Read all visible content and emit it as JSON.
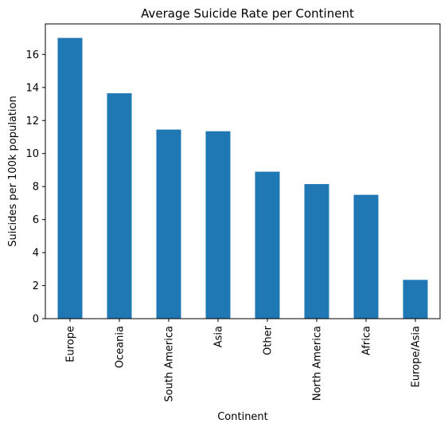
{
  "chart_data": {
    "type": "bar",
    "title": "Average Suicide Rate per Continent",
    "xlabel": "Continent",
    "ylabel": "Suicides per 100k population",
    "categories": [
      "Europe",
      "Oceania",
      "South America",
      "Asia",
      "Other",
      "North America",
      "Africa",
      "Europe/Asia"
    ],
    "values": [
      17.0,
      13.65,
      11.45,
      11.35,
      8.9,
      8.15,
      7.5,
      2.35
    ],
    "ylim": [
      0,
      17.85
    ],
    "yticks": [
      0,
      2,
      4,
      6,
      8,
      10,
      12,
      14,
      16
    ],
    "grid": false,
    "bar_color": "#1f77b4"
  }
}
